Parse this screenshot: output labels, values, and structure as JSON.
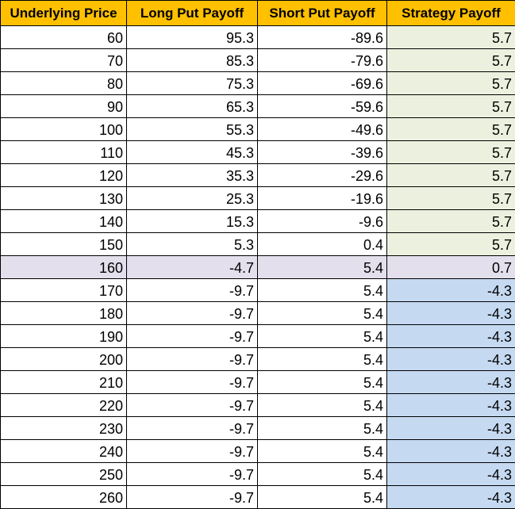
{
  "table": {
    "headers": [
      "Underlying Price",
      "Long Put Payoff",
      "Short Put Payoff",
      "Strategy Payoff"
    ],
    "rows": [
      {
        "price": "60",
        "long": "95.3",
        "short": "-89.6",
        "strategy": "5.7",
        "zone": "profit"
      },
      {
        "price": "70",
        "long": "85.3",
        "short": "-79.6",
        "strategy": "5.7",
        "zone": "profit"
      },
      {
        "price": "80",
        "long": "75.3",
        "short": "-69.6",
        "strategy": "5.7",
        "zone": "profit"
      },
      {
        "price": "90",
        "long": "65.3",
        "short": "-59.6",
        "strategy": "5.7",
        "zone": "profit"
      },
      {
        "price": "100",
        "long": "55.3",
        "short": "-49.6",
        "strategy": "5.7",
        "zone": "profit"
      },
      {
        "price": "110",
        "long": "45.3",
        "short": "-39.6",
        "strategy": "5.7",
        "zone": "profit"
      },
      {
        "price": "120",
        "long": "35.3",
        "short": "-29.6",
        "strategy": "5.7",
        "zone": "profit"
      },
      {
        "price": "130",
        "long": "25.3",
        "short": "-19.6",
        "strategy": "5.7",
        "zone": "profit"
      },
      {
        "price": "140",
        "long": "15.3",
        "short": "-9.6",
        "strategy": "5.7",
        "zone": "profit"
      },
      {
        "price": "150",
        "long": "5.3",
        "short": "0.4",
        "strategy": "5.7",
        "zone": "profit"
      },
      {
        "price": "160",
        "long": "-4.7",
        "short": "5.4",
        "strategy": "0.7",
        "zone": "mid"
      },
      {
        "price": "170",
        "long": "-9.7",
        "short": "5.4",
        "strategy": "-4.3",
        "zone": "loss"
      },
      {
        "price": "180",
        "long": "-9.7",
        "short": "5.4",
        "strategy": "-4.3",
        "zone": "loss"
      },
      {
        "price": "190",
        "long": "-9.7",
        "short": "5.4",
        "strategy": "-4.3",
        "zone": "loss"
      },
      {
        "price": "200",
        "long": "-9.7",
        "short": "5.4",
        "strategy": "-4.3",
        "zone": "loss"
      },
      {
        "price": "210",
        "long": "-9.7",
        "short": "5.4",
        "strategy": "-4.3",
        "zone": "loss"
      },
      {
        "price": "220",
        "long": "-9.7",
        "short": "5.4",
        "strategy": "-4.3",
        "zone": "loss"
      },
      {
        "price": "230",
        "long": "-9.7",
        "short": "5.4",
        "strategy": "-4.3",
        "zone": "loss"
      },
      {
        "price": "240",
        "long": "-9.7",
        "short": "5.4",
        "strategy": "-4.3",
        "zone": "loss"
      },
      {
        "price": "250",
        "long": "-9.7",
        "short": "5.4",
        "strategy": "-4.3",
        "zone": "loss"
      },
      {
        "price": "260",
        "long": "-9.7",
        "short": "5.4",
        "strategy": "-4.3",
        "zone": "loss"
      }
    ]
  },
  "colors": {
    "header_bg": "#ffc000",
    "profit_bg": "#ebf1de",
    "mid_row_bg": "#e4dfec",
    "loss_bg": "#c5d9f1",
    "border": "#000000"
  }
}
